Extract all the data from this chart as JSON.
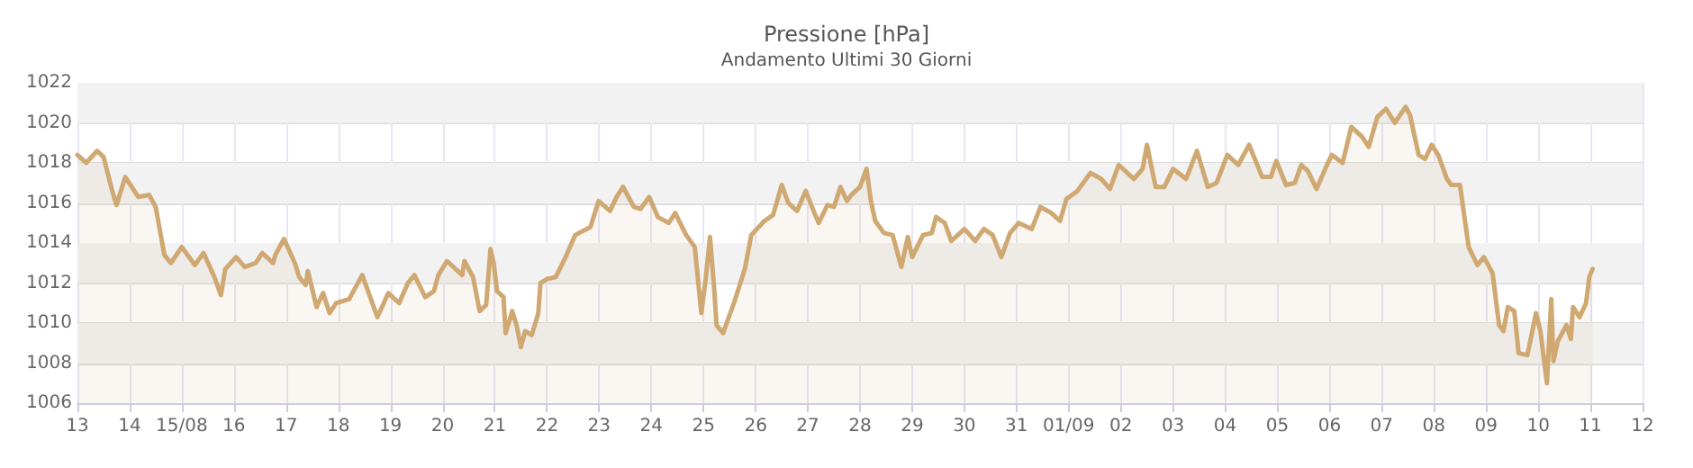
{
  "chart_data": {
    "type": "area",
    "title": "Pressione [hPa]",
    "subtitle": "Andamento Ultimi 30 Giorni",
    "color": "#cfa872",
    "grid": true,
    "x": [
      "--08-13T00:00",
      "--08-13T04:00",
      "--08-13T09:00",
      "--08-13T12:00",
      "--08-13T16:00",
      "--08-13T18:00",
      "--08-13T22:00",
      "--08-14T04:00",
      "--08-14T09:00",
      "--08-14T12:00",
      "--08-14T16:00",
      "--08-14T19:00",
      "--08-15T00:00",
      "--08-15T06:00",
      "--08-15T10:00",
      "--08-15T15:00",
      "--08-15T18:00",
      "--08-15T20:00",
      "--08-16T01:00",
      "--08-16T05:00",
      "--08-16T10:00",
      "--08-16T13:00",
      "--08-16T18:00",
      "--08-16T19:00",
      "--08-16T23:00",
      "--08-17T04:00",
      "--08-17T06:00",
      "--08-17T09:00",
      "--08-17T10:00",
      "--08-17T14:00",
      "--08-17T17:00",
      "--08-17T20:00",
      "--08-17T23:00",
      "--08-18T05:00",
      "--08-18T11:00",
      "--08-18T18:00",
      "--08-18T23:00",
      "--08-19T04:00",
      "--08-19T08:00",
      "--08-19T11:00",
      "--08-19T16:00",
      "--08-19T20:00",
      "--08-19T22:00",
      "--08-20T02:00",
      "--08-20T09:00",
      "--08-20T10:00",
      "--08-20T14:00",
      "--08-20T17:00",
      "--08-20T20:00",
      "--08-20T22:00",
      "--08-20T23:30",
      "--08-21T01:00",
      "--08-21T04:00",
      "--08-21T05:00",
      "--08-21T08:00",
      "--08-21T10:00",
      "--08-21T12:00",
      "--08-21T14:00",
      "--08-21T17:00",
      "--08-21T20:00",
      "--08-21T21:00",
      "--08-22T00:00",
      "--08-22T04:00",
      "--08-22T09:00",
      "--08-22T13:00",
      "--08-22T20:00",
      "--08-22T23:45",
      "--08-23T05:00",
      "--08-23T08:00",
      "--08-23T11:00",
      "--08-23T16:00",
      "--08-23T19:00",
      "--08-23T23:00",
      "--08-24T03:00",
      "--08-24T08:00",
      "--08-24T11:00",
      "--08-24T16:00",
      "--08-24T20:00",
      "--08-24T23:00",
      "--08-25T01:00",
      "--08-25T03:00",
      "--08-25T05:00",
      "--08-25T06:00",
      "--08-25T09:00",
      "--08-25T14:00",
      "--08-25T19:00",
      "--08-25T22:00",
      "--08-26T04:00",
      "--08-26T08:00",
      "--08-26T12:00",
      "--08-26T15:00",
      "--08-26T19:00",
      "--08-26T23:00",
      "--08-27T03:00",
      "--08-27T05:00",
      "--08-27T09:00",
      "--08-27T12:00",
      "--08-27T15:00",
      "--08-27T18:00",
      "--08-27T20:00",
      "--08-28T00:00",
      "--08-28T03:00",
      "--08-28T05:00",
      "--08-28T07:00",
      "--08-28T11:00",
      "--08-28T15:00",
      "--08-28T19:00",
      "--08-28T22:00",
      "--08-29T00:00",
      "--08-29T05:00",
      "--08-29T09:00",
      "--08-29T11:00",
      "--08-29T15:00",
      "--08-29T18:00",
      "--08-30T00:00",
      "--08-30T05:00",
      "--08-30T09:00",
      "--08-30T13:00",
      "--08-30T17:00",
      "--08-30T21:00",
      "--08-31T01:00",
      "--08-31T07:00",
      "--08-31T11:00",
      "--08-31T16:00",
      "--08-31T20:00",
      "--08-31T23:00",
      "--09-01T04:00",
      "--09-01T10:00",
      "--09-01T15:00",
      "--09-01T19:00",
      "--09-01T23:00",
      "--09-02T06:00",
      "--09-02T10:00",
      "--09-02T12:00",
      "--09-02T16:00",
      "--09-02T20:00",
      "--09-03T00:00",
      "--09-03T06:00",
      "--09-03T11:00",
      "--09-03T16:00",
      "--09-03T20:00",
      "--09-04T01:00",
      "--09-04T06:00",
      "--09-04T11:00",
      "--09-04T17:00",
      "--09-04T21:00",
      "--09-04T23:30",
      "--09-05T04:00",
      "--09-05T08:00",
      "--09-05T11:00",
      "--09-05T14:00",
      "--09-05T18:00",
      "--09-05T22:00",
      "--09-06T01:00",
      "--09-06T06:00",
      "--09-06T10:00",
      "--09-06T15:00",
      "--09-06T18:00",
      "--09-06T22:00",
      "--09-07T02:00",
      "--09-07T06:00",
      "--09-07T11:00",
      "--09-07T13:00",
      "--09-07T17:00",
      "--09-07T20:00",
      "--09-07T23:00",
      "--09-08T02:00",
      "--09-08T06:00",
      "--09-08T08:00",
      "--09-08T12:00",
      "--09-08T16:00",
      "--09-08T20:00",
      "--09-08T23:00",
      "--09-09T03:00",
      "--09-09T06:00",
      "--09-09T08:00",
      "--09-09T10:00",
      "--09-09T13:00",
      "--09-09T15:00",
      "--09-09T19:00",
      "--09-09T23:00",
      "--09-10T01:00",
      "--09-10T04:00",
      "--09-10T06:00",
      "--09-10T07:00",
      "--09-10T09:00",
      "--09-10T13:00",
      "--09-10T15:00",
      "--09-10T16:00",
      "--09-10T19:00",
      "--09-10T22:00",
      "--09-10T23:30",
      "--09-11T01:00"
    ],
    "values": [
      1018.4,
      1018.0,
      1018.6,
      1018.3,
      1016.6,
      1015.9,
      1017.3,
      1016.3,
      1016.4,
      1015.8,
      1013.4,
      1013.0,
      1013.8,
      1012.9,
      1013.5,
      1012.3,
      1011.4,
      1012.7,
      1013.3,
      1012.8,
      1013.0,
      1013.5,
      1013.0,
      1013.4,
      1014.2,
      1013.0,
      1012.3,
      1011.9,
      1012.6,
      1010.8,
      1011.5,
      1010.5,
      1011.0,
      1011.2,
      1012.4,
      1010.3,
      1011.5,
      1011.0,
      1012.0,
      1012.4,
      1011.3,
      1011.6,
      1012.4,
      1013.1,
      1012.4,
      1013.1,
      1012.3,
      1010.6,
      1010.9,
      1013.7,
      1013.0,
      1011.6,
      1011.3,
      1009.5,
      1010.6,
      1009.9,
      1008.8,
      1009.6,
      1009.4,
      1010.5,
      1012.0,
      1012.2,
      1012.3,
      1013.4,
      1014.4,
      1014.8,
      1016.1,
      1015.6,
      1016.3,
      1016.8,
      1015.8,
      1015.7,
      1016.3,
      1015.3,
      1015.0,
      1015.5,
      1014.4,
      1013.8,
      1010.5,
      1012.2,
      1014.3,
      1011.6,
      1009.9,
      1009.5,
      1011.0,
      1012.7,
      1014.4,
      1015.1,
      1015.4,
      1016.9,
      1016.0,
      1015.6,
      1016.6,
      1015.5,
      1015.0,
      1015.9,
      1015.8,
      1016.8,
      1016.1,
      1016.4,
      1016.8,
      1017.7,
      1016.1,
      1015.1,
      1014.5,
      1014.4,
      1012.8,
      1014.3,
      1013.3,
      1014.4,
      1014.5,
      1015.3,
      1015.0,
      1014.1,
      1014.7,
      1014.1,
      1014.7,
      1014.4,
      1013.3,
      1014.5,
      1015.0,
      1014.7,
      1015.8,
      1015.5,
      1015.1,
      1016.2,
      1016.6,
      1017.5,
      1017.2,
      1016.7,
      1017.9,
      1017.2,
      1017.7,
      1018.9,
      1016.8,
      1016.8,
      1017.7,
      1017.2,
      1018.6,
      1016.8,
      1017.0,
      1018.4,
      1017.9,
      1018.9,
      1017.3,
      1017.3,
      1018.1,
      1016.9,
      1017.0,
      1017.9,
      1017.6,
      1016.7,
      1017.7,
      1018.4,
      1018.0,
      1019.8,
      1019.3,
      1018.8,
      1020.3,
      1020.7,
      1020.0,
      1020.8,
      1020.4,
      1018.4,
      1018.2,
      1018.9,
      1018.4,
      1017.2,
      1016.9,
      1016.9,
      1013.8,
      1012.9,
      1013.3,
      1012.5,
      1009.9,
      1009.6,
      1010.8,
      1010.6,
      1008.5,
      1008.4,
      1010.5,
      1009.6,
      1007.0,
      1011.2,
      1008.1,
      1009.1,
      1009.9,
      1009.2,
      1010.8,
      1010.3,
      1011.0,
      1012.3,
      1012.7
    ],
    "xlim": [
      "--08-13",
      "--09-12"
    ],
    "xticks": [
      {
        "value": "--08-13",
        "label": "13"
      },
      {
        "value": "--08-14",
        "label": "14"
      },
      {
        "value": "--08-15",
        "label": "15/08"
      },
      {
        "value": "--08-16",
        "label": "16"
      },
      {
        "value": "--08-17",
        "label": "17"
      },
      {
        "value": "--08-18",
        "label": "18"
      },
      {
        "value": "--08-19",
        "label": "19"
      },
      {
        "value": "--08-20",
        "label": "20"
      },
      {
        "value": "--08-21",
        "label": "21"
      },
      {
        "value": "--08-22",
        "label": "22"
      },
      {
        "value": "--08-23",
        "label": "23"
      },
      {
        "value": "--08-24",
        "label": "24"
      },
      {
        "value": "--08-25",
        "label": "25"
      },
      {
        "value": "--08-26",
        "label": "26"
      },
      {
        "value": "--08-27",
        "label": "27"
      },
      {
        "value": "--08-28",
        "label": "28"
      },
      {
        "value": "--08-29",
        "label": "29"
      },
      {
        "value": "--08-30",
        "label": "30"
      },
      {
        "value": "--08-31",
        "label": "31"
      },
      {
        "value": "--09-01",
        "label": "01/09"
      },
      {
        "value": "--09-02",
        "label": "02"
      },
      {
        "value": "--09-03",
        "label": "03"
      },
      {
        "value": "--09-04",
        "label": "04"
      },
      {
        "value": "--09-05",
        "label": "05"
      },
      {
        "value": "--09-06",
        "label": "06"
      },
      {
        "value": "--09-07",
        "label": "07"
      },
      {
        "value": "--09-08",
        "label": "08"
      },
      {
        "value": "--09-09",
        "label": "09"
      },
      {
        "value": "--09-10",
        "label": "10"
      },
      {
        "value": "--09-11",
        "label": "11"
      },
      {
        "value": "--09-12",
        "label": "12"
      }
    ],
    "ylim": [
      1006,
      1022
    ],
    "yticks": [
      1006,
      1008,
      1010,
      1012,
      1014,
      1016,
      1018,
      1020,
      1022
    ],
    "bands": [
      {
        "axis": "y",
        "from": 1008,
        "to": 1010,
        "color": "#f2f2f2"
      },
      {
        "axis": "y",
        "from": 1012,
        "to": 1014,
        "color": "#f2f2f2"
      },
      {
        "axis": "y",
        "from": 1016,
        "to": 1018,
        "color": "#f2f2f2"
      },
      {
        "axis": "y",
        "from": 1020,
        "to": 1022,
        "color": "#f2f2f2"
      }
    ]
  }
}
